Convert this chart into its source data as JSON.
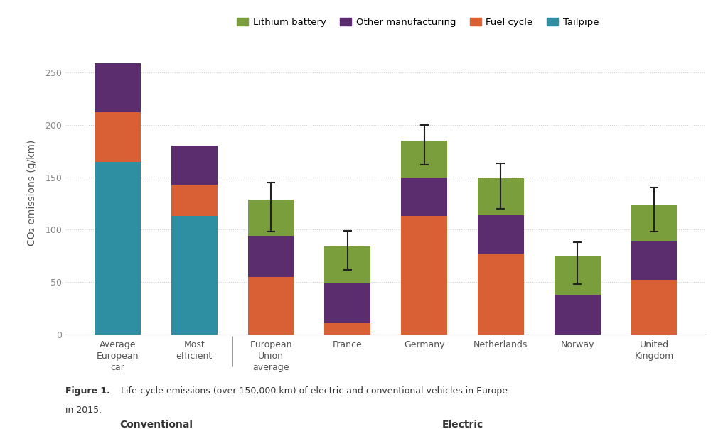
{
  "categories": [
    "Average\nEuropean\ncar",
    "Most\nefficient",
    "European\nUnion\naverage",
    "France",
    "Germany",
    "Netherlands",
    "Norway",
    "United\nKingdom"
  ],
  "segments": {
    "Tailpipe": [
      165,
      113,
      0,
      0,
      0,
      0,
      0,
      0
    ],
    "Fuel cycle": [
      47,
      30,
      55,
      11,
      113,
      77,
      0,
      52
    ],
    "Other manufacturing": [
      47,
      37,
      39,
      38,
      37,
      37,
      38,
      37
    ],
    "Lithium battery": [
      0,
      0,
      35,
      35,
      35,
      35,
      37,
      35
    ]
  },
  "error_bars": {
    "centers": [
      null,
      null,
      129,
      85,
      185,
      150,
      75,
      125
    ],
    "lower": [
      null,
      null,
      98,
      62,
      162,
      120,
      48,
      98
    ],
    "upper": [
      null,
      null,
      145,
      99,
      200,
      163,
      88,
      140
    ]
  },
  "colors": {
    "Lithium battery": "#7a9e3b",
    "Other manufacturing": "#5b2d6e",
    "Fuel cycle": "#d95f35",
    "Tailpipe": "#2e8fa3"
  },
  "legend_order": [
    "Lithium battery",
    "Other manufacturing",
    "Fuel cycle",
    "Tailpipe"
  ],
  "segment_order": [
    "Tailpipe",
    "Fuel cycle",
    "Other manufacturing",
    "Lithium battery"
  ],
  "ylabel": "CO₂ emissions (g/km)",
  "ylim": [
    0,
    270
  ],
  "yticks": [
    0,
    50,
    100,
    150,
    200,
    250
  ],
  "background_color": "#ffffff",
  "grid_color": "#cccccc",
  "bar_width": 0.6,
  "conventional_indices": [
    0,
    1
  ],
  "electric_indices": [
    2,
    3,
    4,
    5,
    6,
    7
  ],
  "caption_normal": " Life-cycle emissions (over 150,000 km) of electric and conventional vehicles in Europe\nin 2015.",
  "caption_bold": "Figure 1."
}
